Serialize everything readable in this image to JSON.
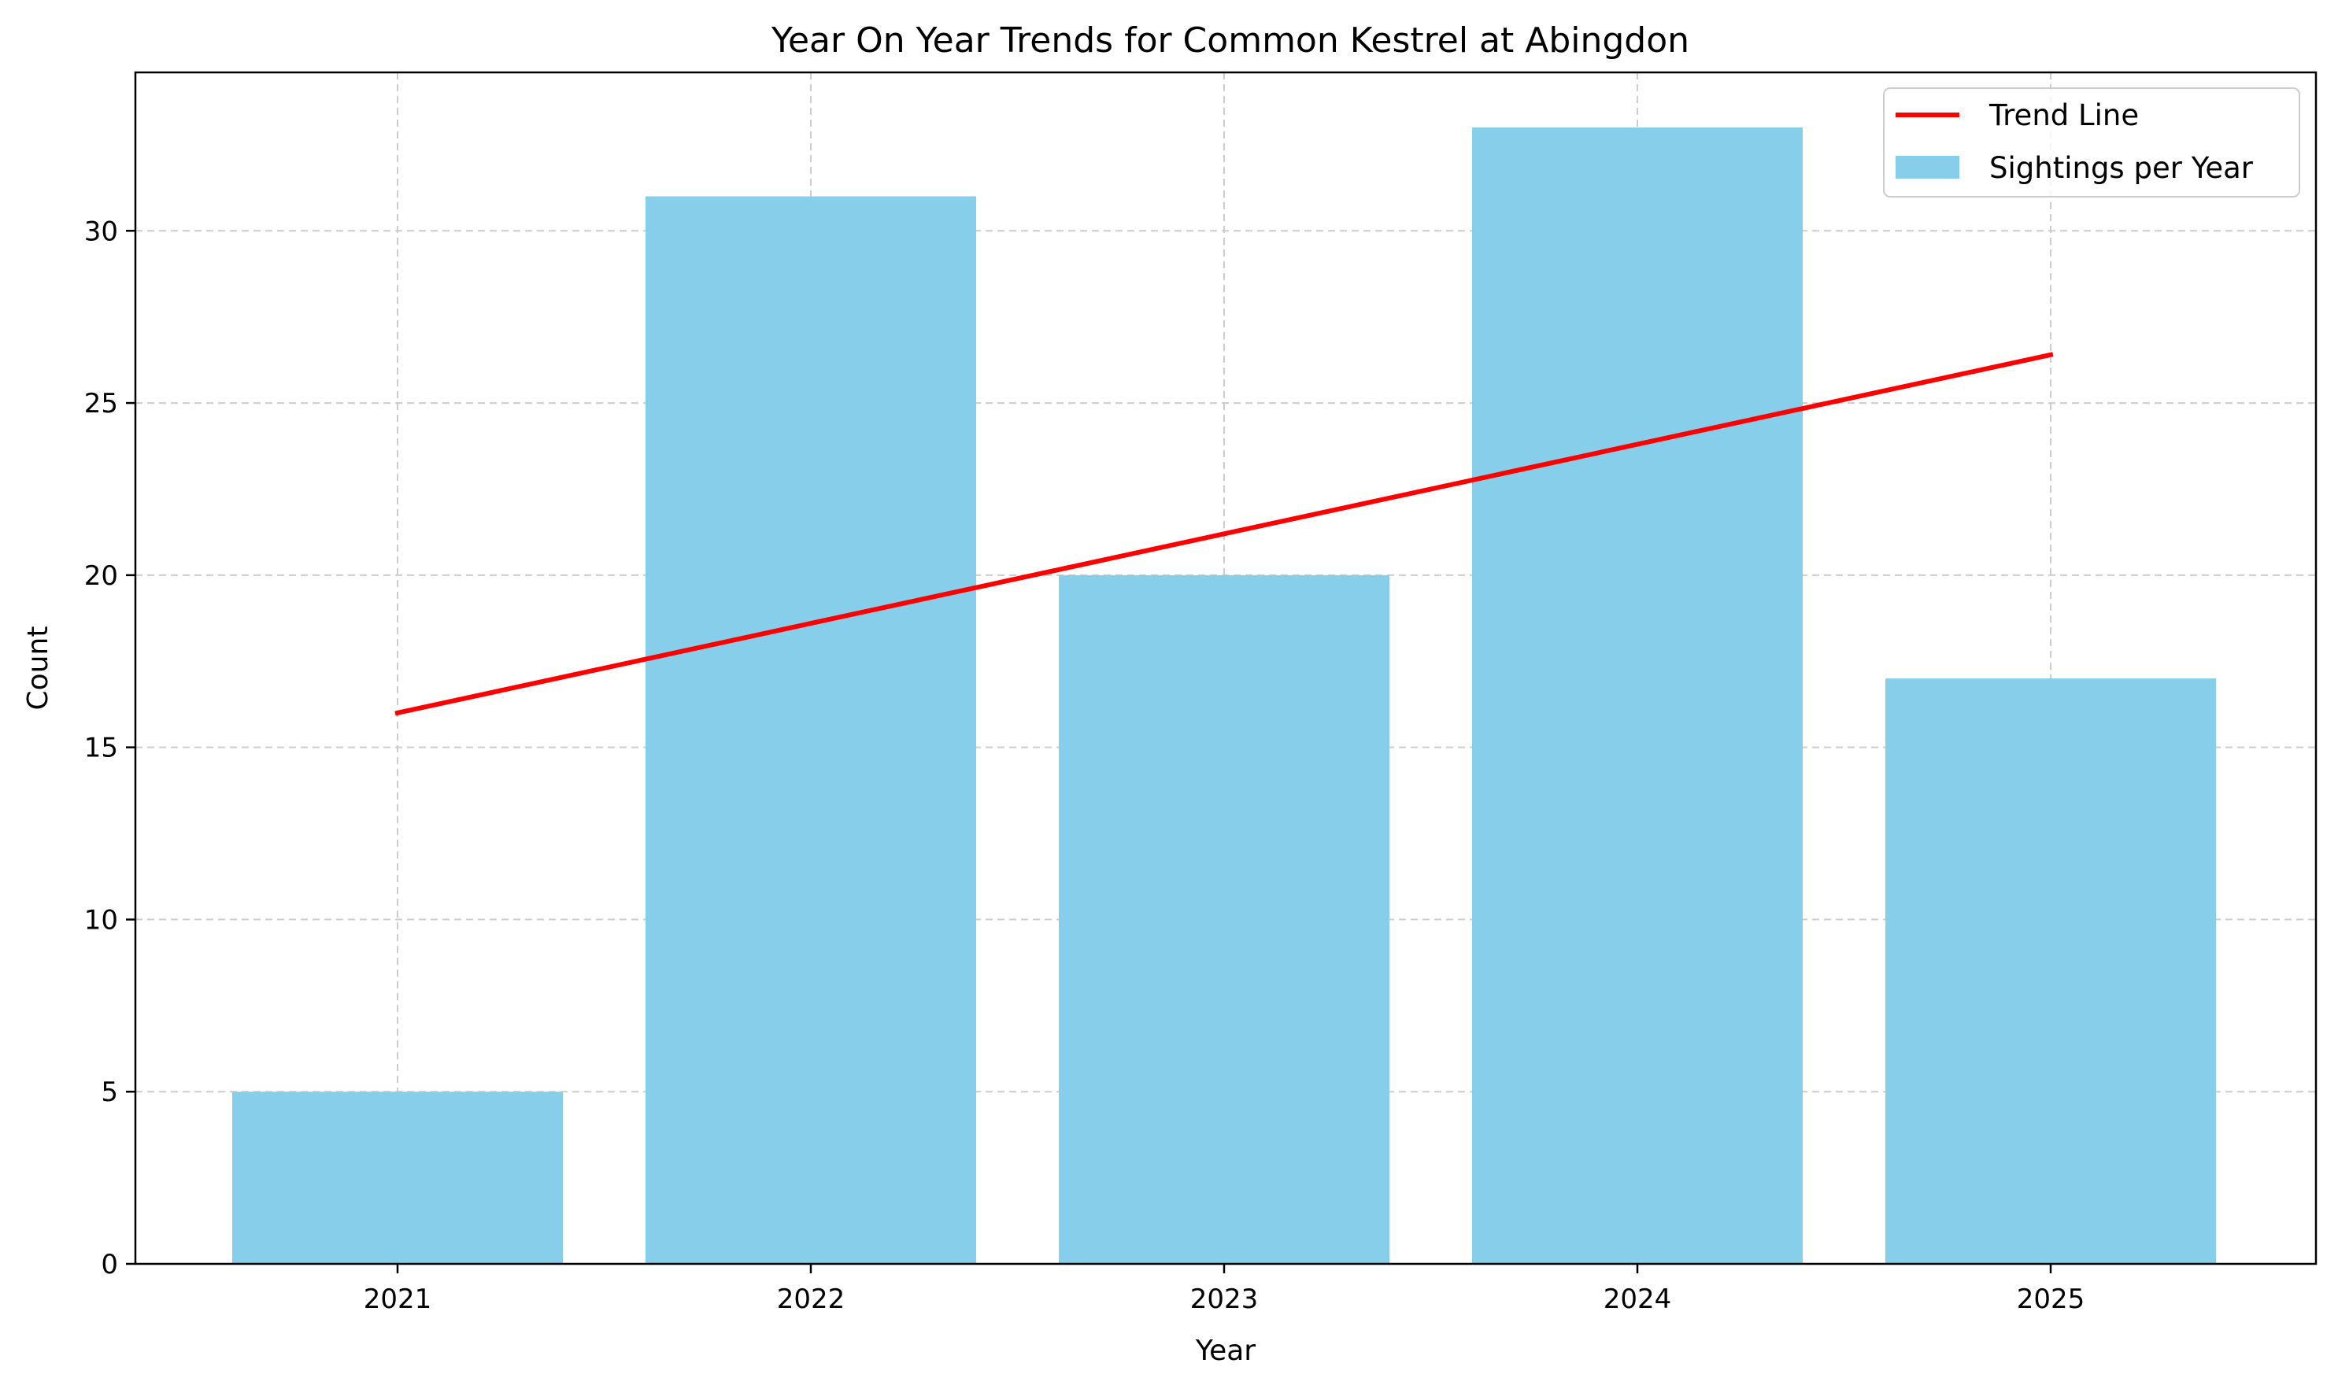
{
  "chart_data": {
    "type": "bar",
    "title": "Year On Year Trends for Common Kestrel at Abingdon",
    "xlabel": "Year",
    "ylabel": "Count",
    "categories": [
      "2021",
      "2022",
      "2023",
      "2024",
      "2025"
    ],
    "series": [
      {
        "name": "Sightings per Year",
        "type": "bar",
        "color": "#87ceeb",
        "values": [
          5,
          31,
          20,
          33,
          17
        ]
      },
      {
        "name": "Trend Line",
        "type": "line",
        "color": "#ff0000",
        "values": [
          16.0,
          18.6,
          21.2,
          23.8,
          26.4
        ]
      }
    ],
    "ylim": [
      0,
      34.6
    ],
    "yticks": [
      0,
      5,
      10,
      15,
      20,
      25,
      30
    ],
    "grid": true,
    "grid_color": "#cccccc",
    "legend_placement": "top-right"
  }
}
